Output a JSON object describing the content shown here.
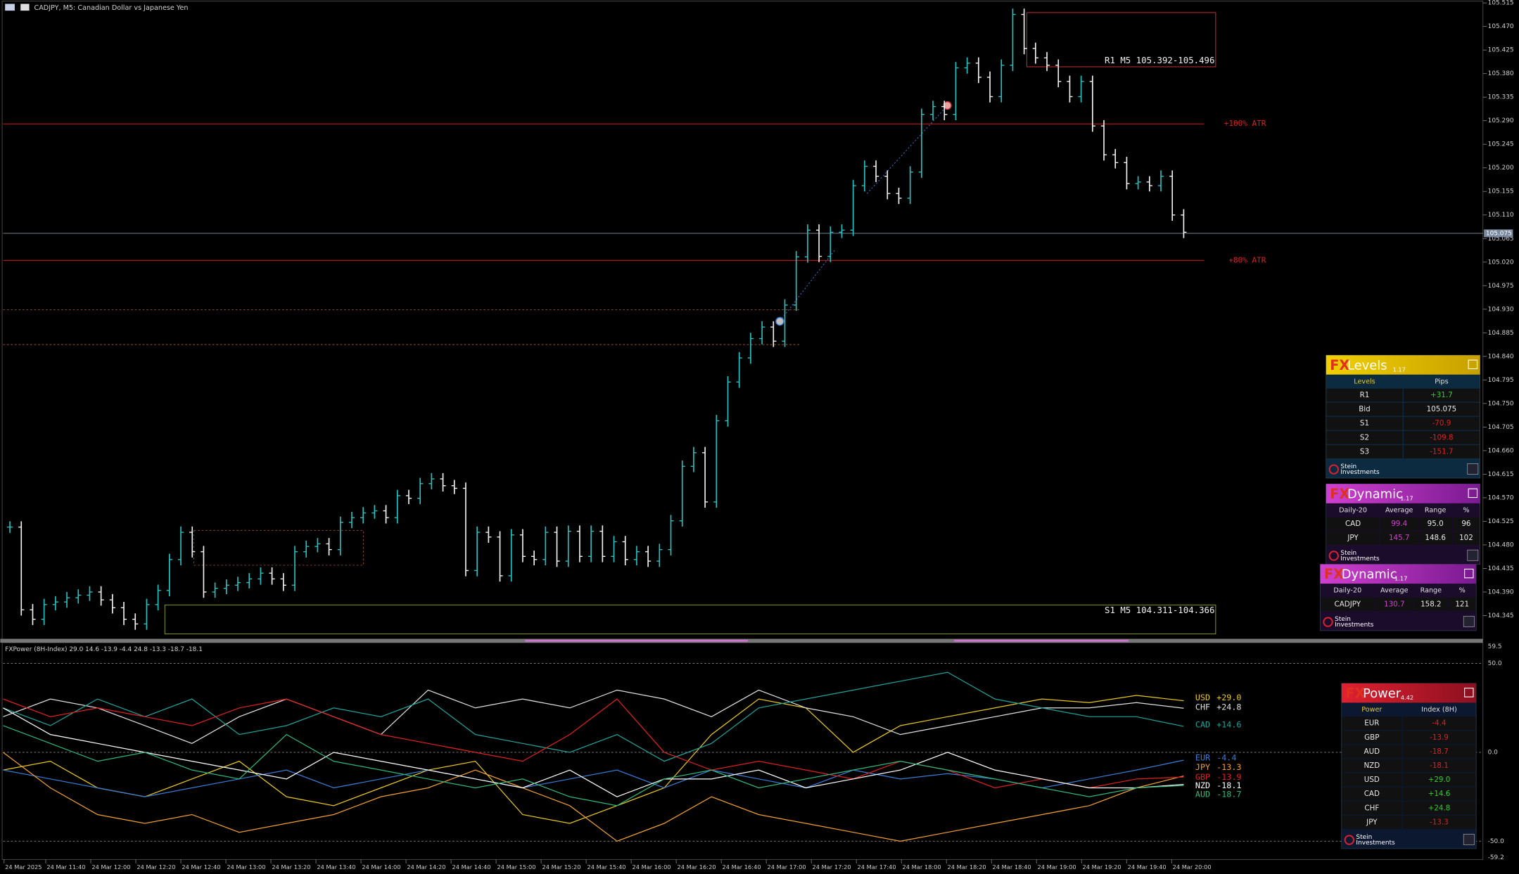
{
  "header": {
    "title": "CADJPY, M5:  Canadian Dollar vs Japanese Yen"
  },
  "price_axis": {
    "ticks": [
      "105.515",
      "105.470",
      "105.425",
      "105.380",
      "105.335",
      "105.290",
      "105.245",
      "105.200",
      "105.155",
      "105.110",
      "105.065",
      "105.020",
      "104.975",
      "104.930",
      "104.885",
      "104.840",
      "104.795",
      "104.750",
      "104.705",
      "104.660",
      "104.615",
      "104.570",
      "104.525",
      "104.480",
      "104.435",
      "104.390",
      "104.345"
    ],
    "bid": "105.075"
  },
  "candles": {
    "closes": [
      104.514,
      104.356,
      104.338,
      104.366,
      104.371,
      104.379,
      104.384,
      104.39,
      104.375,
      104.36,
      104.338,
      104.329,
      104.366,
      104.393,
      104.452,
      104.504,
      104.467,
      104.39,
      104.397,
      104.403,
      104.408,
      104.415,
      104.426,
      104.415,
      104.403,
      104.467,
      104.477,
      104.482,
      104.471,
      104.523,
      104.532,
      104.541,
      104.545,
      104.532,
      104.574,
      104.569,
      104.597,
      104.606,
      104.593,
      104.588,
      104.431,
      104.504,
      104.495,
      104.421,
      104.499,
      104.458,
      104.452,
      104.504,
      104.449,
      104.506,
      104.458,
      104.506,
      104.458,
      104.486,
      104.452,
      104.467,
      104.449,
      104.471,
      104.526,
      104.63,
      104.656,
      104.562,
      104.717,
      104.791,
      104.837,
      104.874,
      104.896,
      104.869,
      104.938,
      105.03,
      105.081,
      105.031,
      105.077,
      105.081,
      105.166,
      105.203,
      105.184,
      105.151,
      105.142,
      105.192,
      105.302,
      105.317,
      105.302,
      105.391,
      105.4,
      105.373,
      105.336,
      105.396,
      105.493,
      105.428,
      105.41,
      105.396,
      105.365,
      105.336,
      105.365,
      105.28,
      105.225,
      105.21,
      105.17,
      105.173,
      105.166,
      105.184,
      105.11,
      105.077
    ]
  },
  "levels": [
    "+100% ATR",
    "+80% ATR"
  ],
  "zones": [
    "R1 M5 105.392-105.496",
    "S1 M5 104.311-104.366"
  ],
  "indicator": {
    "title": "FXPower (8H-Index) 29.0 14.6 -13.9 -4.4 24.8 -13.3 -18.7 -18.1",
    "ylim": [
      -59.2,
      59.5
    ],
    "axis": [
      {
        "value": 59.5,
        "label": "59.5"
      },
      {
        "value": 50,
        "label": "50.0"
      },
      {
        "value": 0,
        "label": "0.0"
      },
      {
        "value": -50,
        "label": "-50.0"
      },
      {
        "value": -59.2,
        "label": "-59.2"
      }
    ],
    "series": [
      {
        "name": "USD",
        "value_label": "+29.0",
        "color": "#e8c81a",
        "values": [
          -10,
          -5,
          -20,
          -25,
          -15,
          -5,
          -25,
          -30,
          -20,
          -10,
          -5,
          -35,
          -40,
          -30,
          -20,
          10,
          30,
          25,
          0,
          15,
          20,
          25,
          30,
          28,
          32,
          29
        ]
      },
      {
        "name": "CHF",
        "value_label": "+24.8",
        "color": "#e0e0e0",
        "values": [
          20,
          30,
          25,
          15,
          5,
          20,
          30,
          20,
          10,
          35,
          25,
          30,
          25,
          35,
          30,
          20,
          35,
          25,
          20,
          10,
          15,
          20,
          25,
          25,
          28,
          24.8
        ]
      },
      {
        "name": "CAD",
        "value_label": "+14.6",
        "color": "#1fa39a",
        "values": [
          25,
          15,
          30,
          20,
          30,
          10,
          15,
          25,
          20,
          30,
          10,
          5,
          0,
          10,
          -5,
          5,
          25,
          30,
          35,
          40,
          45,
          30,
          25,
          20,
          20,
          14.6
        ]
      },
      {
        "name": "EUR",
        "value_label": "-4.4",
        "color": "#3a7bd5",
        "values": [
          -10,
          -15,
          -20,
          -25,
          -20,
          -15,
          -10,
          -20,
          -15,
          -10,
          -15,
          -20,
          -15,
          -10,
          -20,
          -10,
          -15,
          -20,
          -10,
          -15,
          -12,
          -15,
          -20,
          -15,
          -10,
          -4.4
        ]
      },
      {
        "name": "JPY",
        "value_label": "-13.3",
        "color": "#f0a030",
        "values": [
          0,
          -20,
          -35,
          -40,
          -35,
          -45,
          -40,
          -35,
          -25,
          -20,
          -10,
          -20,
          -30,
          -50,
          -40,
          -25,
          -35,
          -40,
          -45,
          -50,
          -45,
          -40,
          -35,
          -30,
          -20,
          -13.3
        ]
      },
      {
        "name": "GBP",
        "value_label": "-13.9",
        "color": "#e02020",
        "values": [
          30,
          20,
          25,
          20,
          15,
          25,
          30,
          20,
          10,
          5,
          0,
          -5,
          10,
          30,
          0,
          -10,
          -5,
          -10,
          -15,
          -5,
          -10,
          -20,
          -15,
          -20,
          -15,
          -13.9
        ]
      },
      {
        "name": "NZD",
        "value_label": "-18.1",
        "color": "#ffffff",
        "values": [
          25,
          10,
          5,
          0,
          -5,
          -10,
          -15,
          0,
          -5,
          -10,
          -15,
          -20,
          -10,
          -25,
          -15,
          -15,
          -10,
          -20,
          -15,
          -10,
          0,
          -10,
          -15,
          -20,
          -20,
          -18.1
        ]
      },
      {
        "name": "AUD",
        "value_label": "-18.7",
        "color": "#2eb87a",
        "values": [
          15,
          5,
          -5,
          0,
          -10,
          -15,
          10,
          -5,
          -10,
          -15,
          -20,
          -15,
          -25,
          -30,
          -15,
          -10,
          -20,
          -15,
          -10,
          -5,
          -10,
          -15,
          -20,
          -25,
          -20,
          -18.7
        ]
      }
    ]
  },
  "time_axis": [
    "24 Mar 2025",
    "24 Mar 11:40",
    "24 Mar 12:00",
    "24 Mar 12:20",
    "24 Mar 12:40",
    "24 Mar 13:00",
    "24 Mar 13:20",
    "24 Mar 13:40",
    "24 Mar 14:00",
    "24 Mar 14:20",
    "24 Mar 14:40",
    "24 Mar 15:00",
    "24 Mar 15:20",
    "24 Mar 15:40",
    "24 Mar 16:00",
    "24 Mar 16:20",
    "24 Mar 16:40",
    "24 Mar 17:00",
    "24 Mar 17:20",
    "24 Mar 17:40",
    "24 Mar 18:00",
    "24 Mar 18:20",
    "24 Mar 18:40",
    "24 Mar 19:00",
    "24 Mar 19:20",
    "24 Mar 19:40",
    "24 Mar 20:00"
  ],
  "panels": [
    {
      "brand": "FX",
      "name": "Levels",
      "version": "1.17",
      "columns": [
        "Levels",
        "Pips"
      ],
      "rows": [
        [
          "R1",
          "+31.7"
        ],
        [
          "Bid",
          "105.075"
        ],
        [
          "S1",
          "-70.9"
        ],
        [
          "S2",
          "-109.8"
        ],
        [
          "S3",
          "-151.7"
        ]
      ],
      "footer": [
        "Stein",
        "Investments"
      ]
    },
    {
      "brand": "FX",
      "name": "Dynamic",
      "version": "1.17",
      "columns": [
        "Daily-20",
        "Average",
        "Range",
        "%"
      ],
      "rows": [
        [
          "CAD",
          "99.4",
          "95.0",
          "96"
        ],
        [
          "JPY",
          "145.7",
          "148.6",
          "102"
        ]
      ],
      "footer": [
        "Stein",
        "Investments"
      ]
    },
    {
      "brand": "FX",
      "name": "Dynamic",
      "version": "1.17",
      "columns": [
        "Daily-20",
        "Average",
        "Range",
        "%"
      ],
      "rows": [
        [
          "CADJPY",
          "130.7",
          "158.2",
          "121"
        ]
      ],
      "footer": [
        "Stein",
        "Investments"
      ]
    },
    {
      "brand": "FX",
      "name": "Power",
      "version": "4.42",
      "columns": [
        "Power",
        "Index (8H)"
      ],
      "rows": [
        [
          "EUR",
          "-4.4"
        ],
        [
          "GBP",
          "-13.9"
        ],
        [
          "AUD",
          "-18.7"
        ],
        [
          "NZD",
          "-18.1"
        ],
        [
          "USD",
          "+29.0"
        ],
        [
          "CAD",
          "+14.6"
        ],
        [
          "CHF",
          "+24.8"
        ],
        [
          "JPY",
          "-13.3"
        ]
      ],
      "footer": [
        "Stein",
        "Investments"
      ]
    }
  ]
}
